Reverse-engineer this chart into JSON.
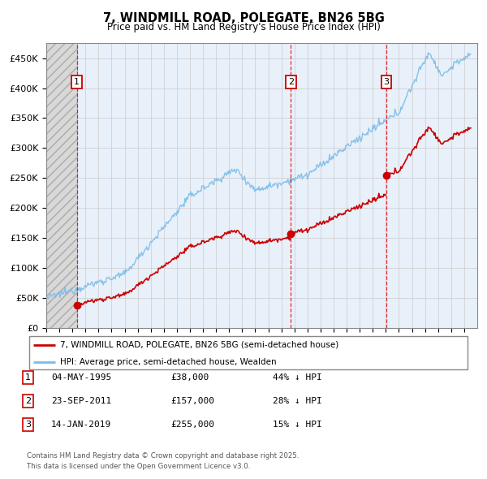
{
  "title_line1": "7, WINDMILL ROAD, POLEGATE, BN26 5BG",
  "title_line2": "Price paid vs. HM Land Registry's House Price Index (HPI)",
  "xlim_start": 1993.0,
  "xlim_end": 2026.0,
  "ylim_min": 0,
  "ylim_max": 475000,
  "yticks": [
    0,
    50000,
    100000,
    150000,
    200000,
    250000,
    300000,
    350000,
    400000,
    450000
  ],
  "ytick_labels": [
    "£0",
    "£50K",
    "£100K",
    "£150K",
    "£200K",
    "£250K",
    "£300K",
    "£350K",
    "£400K",
    "£450K"
  ],
  "sale_dates": [
    1995.34,
    2011.73,
    2019.04
  ],
  "sale_prices": [
    38000,
    157000,
    255000
  ],
  "sale_labels": [
    "1",
    "2",
    "3"
  ],
  "legend_line1": "7, WINDMILL ROAD, POLEGATE, BN26 5BG (semi-detached house)",
  "legend_line2": "HPI: Average price, semi-detached house, Wealden",
  "table_rows": [
    [
      "1",
      "04-MAY-1995",
      "£38,000",
      "44% ↓ HPI"
    ],
    [
      "2",
      "23-SEP-2011",
      "£157,000",
      "28% ↓ HPI"
    ],
    [
      "3",
      "14-JAN-2019",
      "£255,000",
      "15% ↓ HPI"
    ]
  ],
  "footer_line1": "Contains HM Land Registry data © Crown copyright and database right 2025.",
  "footer_line2": "This data is licensed under the Open Government Licence v3.0.",
  "hpi_color": "#7bbce8",
  "sale_color": "#cc0000",
  "grid_color": "#cccccc",
  "background_plot": "#e8f0fa",
  "hatch_facecolor": "#d8d8d8"
}
